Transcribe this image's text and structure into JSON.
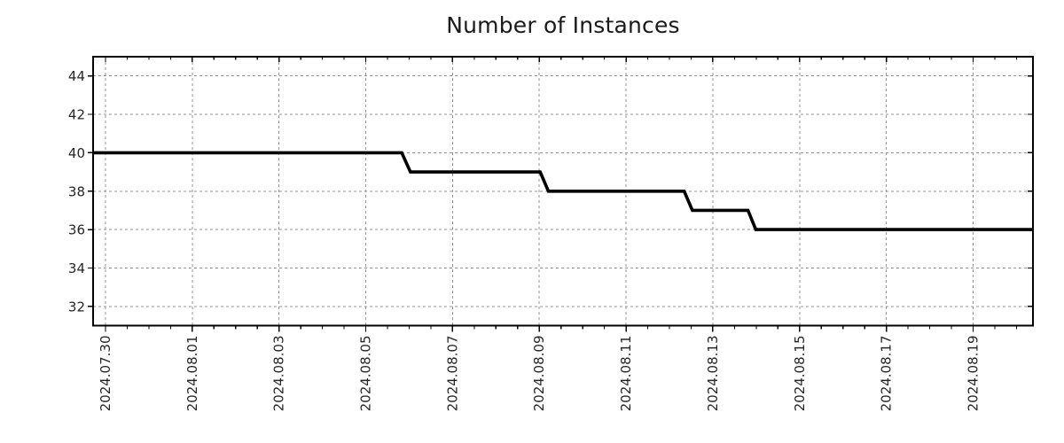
{
  "chart_data": {
    "type": "line",
    "title": "Number of Instances",
    "xlabel": "",
    "ylabel": "",
    "grid": true,
    "legend": "none",
    "line_style": "step",
    "colors": {
      "line": "#000000",
      "grid": "#949494",
      "axis": "#000000",
      "text": "#262626",
      "background": "#ffffff"
    },
    "y_axis": {
      "min": 31,
      "max": 45,
      "major_ticks": [
        32,
        34,
        36,
        38,
        40,
        42,
        44
      ]
    },
    "x_axis": {
      "start_day_offset": -0.286,
      "end_day_offset": 21.38,
      "minor_tick_step_days": 0.5,
      "major_ticks": [
        {
          "day_offset": 0,
          "label": "2024.07.30"
        },
        {
          "day_offset": 2,
          "label": "2024.08.01"
        },
        {
          "day_offset": 4,
          "label": "2024.08.03"
        },
        {
          "day_offset": 6,
          "label": "2024.08.05"
        },
        {
          "day_offset": 8,
          "label": "2024.08.07"
        },
        {
          "day_offset": 10,
          "label": "2024.08.09"
        },
        {
          "day_offset": 12,
          "label": "2024.08.11"
        },
        {
          "day_offset": 14,
          "label": "2024.08.13"
        },
        {
          "day_offset": 16,
          "label": "2024.08.15"
        },
        {
          "day_offset": 18,
          "label": "2024.08.17"
        },
        {
          "day_offset": 20,
          "label": "2024.08.19"
        }
      ]
    },
    "series": [
      {
        "name": "instances",
        "color": "#000000",
        "width": 3.6,
        "points_day_value": [
          [
            -0.286,
            40
          ],
          [
            6.83,
            40
          ],
          [
            7.03,
            39
          ],
          [
            10.02,
            39
          ],
          [
            10.21,
            38
          ],
          [
            13.34,
            38
          ],
          [
            13.53,
            37
          ],
          [
            14.81,
            37
          ],
          [
            14.99,
            36
          ],
          [
            21.38,
            36
          ]
        ]
      }
    ],
    "value_changes": [
      {
        "from": 40,
        "to": 39,
        "at": "2024.08.06"
      },
      {
        "from": 39,
        "to": 38,
        "at": "2024.08.09"
      },
      {
        "from": 38,
        "to": 37,
        "at": "2024.08.12"
      },
      {
        "from": 37,
        "to": 36,
        "at": "2024.08.14"
      }
    ],
    "plateaus": [
      {
        "value": 40,
        "from": "2024.07.29",
        "to": "2024.08.05"
      },
      {
        "value": 39,
        "from": "2024.08.06",
        "to": "2024.08.08"
      },
      {
        "value": 38,
        "from": "2024.08.09",
        "to": "2024.08.12"
      },
      {
        "value": 37,
        "from": "2024.08.12",
        "to": "2024.08.13"
      },
      {
        "value": 36,
        "from": "2024.08.14",
        "to": "2024.08.20"
      }
    ]
  }
}
